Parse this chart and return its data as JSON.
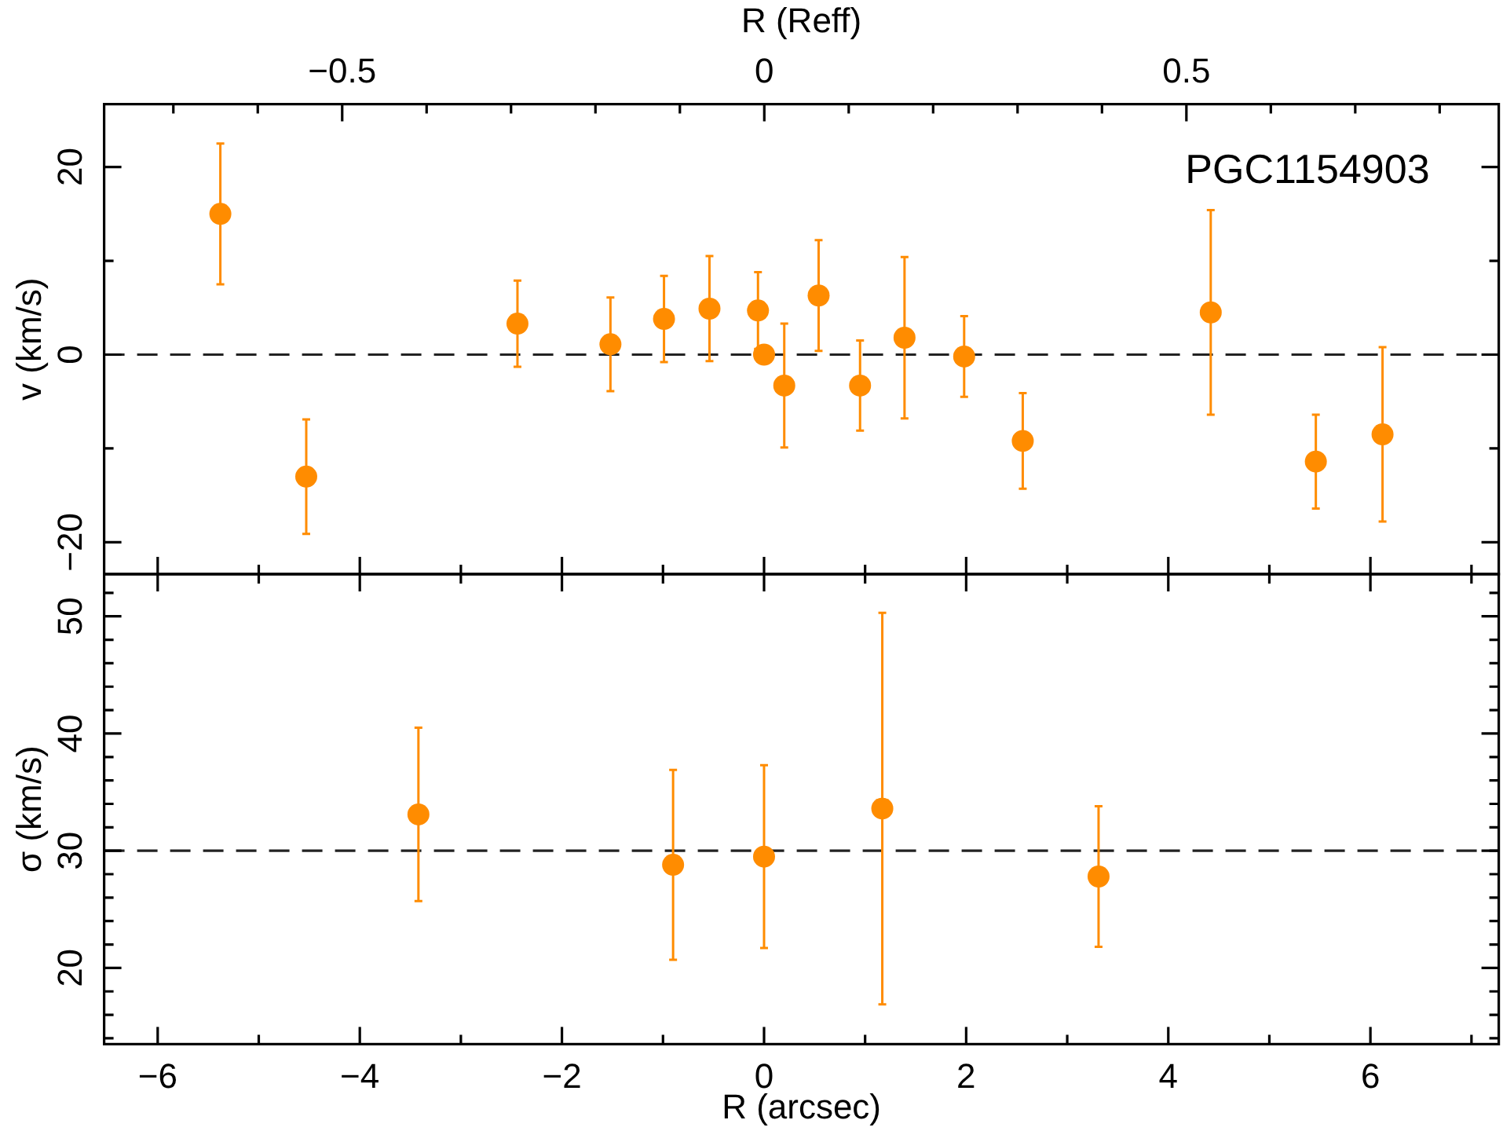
{
  "chart_data": [
    {
      "type": "scatter",
      "ylabel": "v (km/s)",
      "x2label": "R (Reff)",
      "annotations": [
        "PGC1154903"
      ],
      "color": "#ff8c00",
      "marker": "circle",
      "x": [
        -5.38,
        -4.53,
        -2.44,
        -1.52,
        -0.99,
        -0.54,
        -0.06,
        0.0,
        0.2,
        0.54,
        0.95,
        1.39,
        1.98,
        2.56,
        4.42,
        5.46,
        6.12
      ],
      "values": [
        15.0,
        -13.0,
        3.3,
        1.1,
        3.8,
        4.9,
        4.7,
        0.0,
        -3.3,
        6.3,
        -3.3,
        1.8,
        -0.2,
        -9.2,
        4.5,
        -11.4,
        -8.5
      ],
      "errors": [
        7.5,
        6.1,
        4.6,
        5.0,
        4.6,
        5.6,
        4.1,
        null,
        6.6,
        5.9,
        4.8,
        8.6,
        4.3,
        5.1,
        10.9,
        5.0,
        9.3
      ],
      "xlim": [
        -6.53,
        7.27
      ],
      "xticks": [
        -6,
        {
          "value": -5,
          "label": null
        },
        -4,
        {
          "value": -3,
          "label": null
        },
        -2,
        {
          "value": -1,
          "label": null
        },
        0,
        {
          "value": 1,
          "label": null
        },
        2,
        {
          "value": 3,
          "label": null
        },
        4,
        {
          "value": 5,
          "label": null
        },
        6,
        {
          "value": 7,
          "label": null
        }
      ],
      "ylim": [
        -23.4,
        26.7
      ],
      "yticks": [
        -20,
        {
          "value": -10,
          "label": null
        },
        0,
        {
          "value": 10,
          "label": null
        },
        20
      ],
      "x2lim": [
        -0.782,
        0.87
      ],
      "x2ticks": [
        {
          "value": -0.7,
          "label": null
        },
        {
          "value": -0.6,
          "label": null
        },
        -0.5,
        {
          "value": -0.4,
          "label": null
        },
        {
          "value": -0.3,
          "label": null
        },
        {
          "value": -0.2,
          "label": null
        },
        {
          "value": -0.1,
          "label": null
        },
        0,
        {
          "value": 0.1,
          "label": null
        },
        {
          "value": 0.2,
          "label": null
        },
        {
          "value": 0.3,
          "label": null
        },
        {
          "value": 0.4,
          "label": null
        },
        0.5,
        {
          "value": 0.6,
          "label": null
        },
        {
          "value": 0.7,
          "label": null
        },
        {
          "value": 0.8,
          "label": null
        }
      ],
      "tick_labels": "y",
      "ref_lines": [
        {
          "axis": "y",
          "value": 0,
          "line_style": "dashed"
        }
      ]
    },
    {
      "type": "scatter",
      "ylabel": "σ (km/s)",
      "xlabel": "R (arcsec)",
      "color": "#ff8c00",
      "marker": "circle",
      "x": [
        -3.42,
        -0.9,
        0.0,
        1.17,
        3.31
      ],
      "values": [
        33.1,
        28.8,
        29.5,
        33.6,
        27.8
      ],
      "errors": [
        7.4,
        8.1,
        7.8,
        16.7,
        6.0
      ],
      "xlim": [
        -6.53,
        7.27
      ],
      "xticks": [
        -6,
        {
          "value": -5,
          "label": null
        },
        -4,
        {
          "value": -3,
          "label": null
        },
        -2,
        {
          "value": -1,
          "label": null
        },
        0,
        {
          "value": 1,
          "label": null
        },
        2,
        {
          "value": 3,
          "label": null
        },
        4,
        {
          "value": 5,
          "label": null
        },
        6,
        {
          "value": 7,
          "label": null
        }
      ],
      "ylim": [
        13.5,
        53.6
      ],
      "yticks": [
        {
          "value": 14,
          "label": null
        },
        {
          "value": 16,
          "label": null
        },
        {
          "value": 18,
          "label": null
        },
        20,
        {
          "value": 22,
          "label": null
        },
        {
          "value": 24,
          "label": null
        },
        {
          "value": 26,
          "label": null
        },
        {
          "value": 28,
          "label": null
        },
        30,
        {
          "value": 32,
          "label": null
        },
        {
          "value": 34,
          "label": null
        },
        {
          "value": 36,
          "label": null
        },
        {
          "value": 38,
          "label": null
        },
        40,
        {
          "value": 42,
          "label": null
        },
        {
          "value": 44,
          "label": null
        },
        {
          "value": 46,
          "label": null
        },
        {
          "value": 48,
          "label": null
        },
        50,
        {
          "value": 52,
          "label": null
        }
      ],
      "ref_lines": [
        {
          "axis": "y",
          "value": 30,
          "line_style": "dashed"
        }
      ]
    }
  ]
}
